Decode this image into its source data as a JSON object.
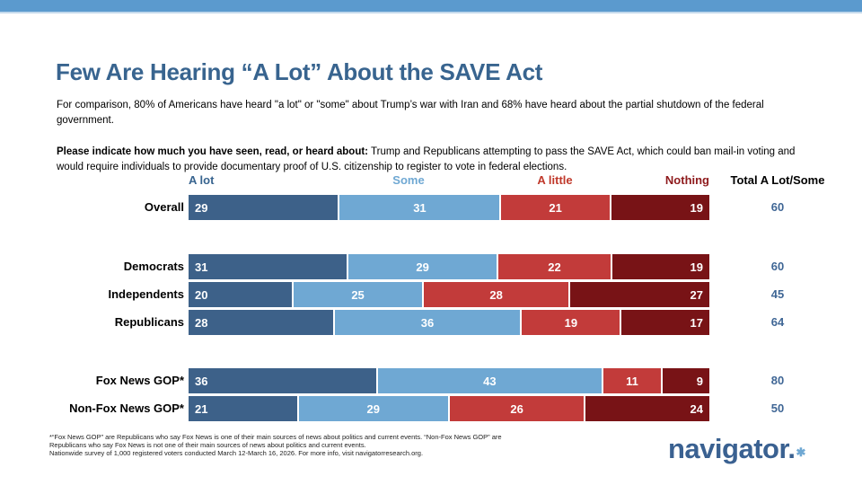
{
  "header": {
    "title": "Few Are Hearing “A Lot” About the SAVE Act",
    "comparison_text": "For comparison, 80% of Americans have heard \"a lot\" or \"some\" about Trump’s war with Iran and 68% have heard about the partial shutdown of the federal government.",
    "question_bold": "Please indicate how much you have seen, read, or heard about:",
    "question_rest": " Trump and Republicans attempting to pass the SAVE Act, which could ban mail-in voting and would require individuals to provide documentary proof of U.S. citizenship to register to vote in federal elections."
  },
  "chart_data": {
    "type": "bar",
    "stacked": true,
    "orientation": "horizontal",
    "categories": [
      "A lot",
      "Some",
      "A little",
      "Nothing"
    ],
    "segment_colors": [
      "#3d6189",
      "#6fa8d3",
      "#c23b3a",
      "#781316"
    ],
    "header_colors": [
      "#38648f",
      "#6fa8d3",
      "#c0392b",
      "#8e1a1c"
    ],
    "total_label": "Total A Lot/Some",
    "xlim": [
      0,
      100
    ],
    "rows": [
      {
        "label": "Overall",
        "values": [
          29,
          31,
          21,
          19
        ],
        "total": 60
      },
      {
        "label": "Democrats",
        "values": [
          31,
          29,
          22,
          19
        ],
        "total": 60
      },
      {
        "label": "Independents",
        "values": [
          20,
          25,
          28,
          27
        ],
        "total": 45
      },
      {
        "label": "Republicans",
        "values": [
          28,
          36,
          19,
          17
        ],
        "total": 64
      },
      {
        "label": "Fox News GOP*",
        "values": [
          36,
          43,
          11,
          9
        ],
        "total": 80
      },
      {
        "label": "Non-Fox News GOP*",
        "values": [
          21,
          29,
          26,
          24
        ],
        "total": 50
      }
    ]
  },
  "colors": {
    "top_bar": "#5b9ace",
    "title": "#38648f",
    "total_text": "#3f6695",
    "logo": "#3a6191",
    "logo_star": "#6fa8d3"
  },
  "footer": {
    "lines": [
      "*“Fox News GOP” are Republicans who say Fox News is one of their main sources of news about politics and current events. “Non-Fox News GOP” are",
      "Republicans who say Fox News is not one of their main sources of news about politics and current events.",
      "Nationwide survey of 1,000 registered voters conducted March 12-March 16, 2026. For more info, visit navigatorresearch.org."
    ],
    "logo_text": "navigator.",
    "logo_star": "✱"
  }
}
